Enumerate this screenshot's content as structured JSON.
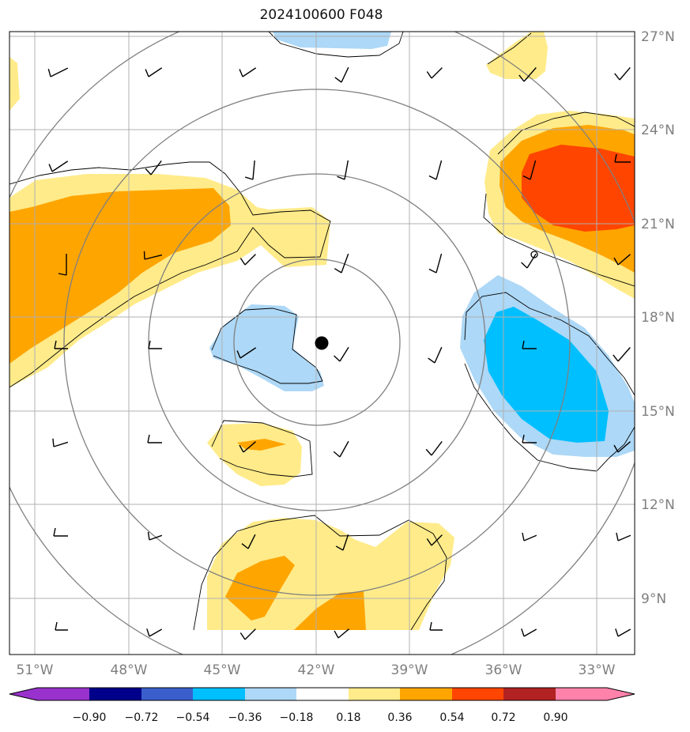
{
  "title": "2024100600 F048",
  "colors": {
    "neg090": "#9932cc",
    "neg072": "#00008b",
    "neg054": "#3a5fcd",
    "neg036": "#00bfff",
    "neg018": "#add8f7",
    "zero": "#ffffff",
    "pos018": "#ffeb8a",
    "pos036": "#ffa500",
    "pos054": "#ff4500",
    "pos072": "#b22222",
    "pos090": "#ff82ab",
    "grid": "#b0b0b0",
    "range_ring": "#808080",
    "contour": "#000000",
    "axis_label": "#7f7f7f"
  },
  "lat_labels": [
    "27°N",
    "24°N",
    "21°N",
    "18°N",
    "15°N",
    "12°N",
    "9°N"
  ],
  "lon_labels": [
    "51°W",
    "48°W",
    "45°W",
    "42°W",
    "39°W",
    "36°W",
    "33°W"
  ],
  "colorbar": {
    "labels": [
      "−0.90",
      "−0.72",
      "−0.54",
      "−0.36",
      "−0.18",
      "0.18",
      "0.36",
      "0.54",
      "0.72",
      "0.90"
    ]
  },
  "storm_center": {
    "lat": 16.8,
    "lon": 41.8
  }
}
